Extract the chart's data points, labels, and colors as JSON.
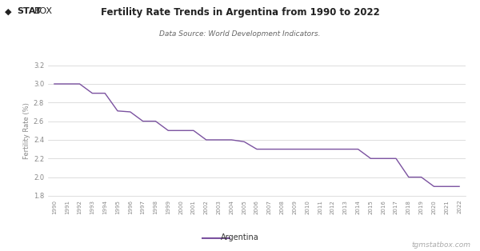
{
  "title": "Fertility Rate Trends in Argentina from 1990 to 2022",
  "subtitle": "Data Source: World Development Indicators.",
  "ylabel": "Fertility Rate (%)",
  "legend_label": "Argentina",
  "watermark": "tgmstatbox.com",
  "line_color": "#7B52A0",
  "background_color": "#ffffff",
  "grid_color": "#d0d0d0",
  "ylim": [
    1.8,
    3.2
  ],
  "yticks": [
    1.8,
    2.0,
    2.2,
    2.4,
    2.6,
    2.8,
    3.0,
    3.2
  ],
  "years": [
    1990,
    1991,
    1992,
    1993,
    1994,
    1995,
    1996,
    1997,
    1998,
    1999,
    2000,
    2001,
    2002,
    2003,
    2004,
    2005,
    2006,
    2007,
    2008,
    2009,
    2010,
    2011,
    2012,
    2013,
    2014,
    2015,
    2016,
    2017,
    2018,
    2019,
    2020,
    2021,
    2022
  ],
  "values": [
    3.0,
    3.0,
    3.0,
    2.9,
    2.9,
    2.71,
    2.7,
    2.6,
    2.6,
    2.5,
    2.5,
    2.5,
    2.4,
    2.4,
    2.4,
    2.38,
    2.3,
    2.3,
    2.3,
    2.3,
    2.3,
    2.3,
    2.3,
    2.3,
    2.3,
    2.2,
    2.2,
    2.2,
    2.0,
    2.0,
    1.9,
    1.9,
    1.9
  ]
}
